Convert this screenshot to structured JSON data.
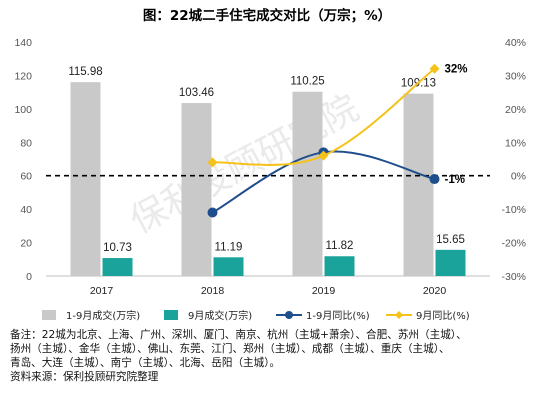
{
  "chart_data": {
    "type": "bar+line",
    "title": "图：22城二手住宅成交对比（万宗；%）",
    "categories": [
      "2017",
      "2018",
      "2019",
      "2020"
    ],
    "left_axis": {
      "ylim": [
        0,
        140
      ],
      "ticks": [
        0,
        20,
        40,
        60,
        80,
        100,
        120,
        140
      ]
    },
    "right_axis": {
      "ylim": [
        -30,
        40
      ],
      "ticks": [
        "-30%",
        "-20%",
        "-10%",
        "0%",
        "10%",
        "20%",
        "30%",
        "40%"
      ]
    },
    "series": [
      {
        "name": "1-9月成交(万宗)",
        "type": "bar",
        "axis": "left",
        "color": "#c9c9c9",
        "values": [
          115.98,
          103.46,
          110.25,
          109.13
        ],
        "labels": [
          "115.98",
          "103.46",
          "110.25",
          "109.13"
        ]
      },
      {
        "name": "9月成交(万宗)",
        "type": "bar",
        "axis": "left",
        "color": "#1aa39a",
        "values": [
          10.73,
          11.19,
          11.82,
          15.65
        ],
        "labels": [
          "10.73",
          "11.19",
          "11.82",
          "15.65"
        ]
      },
      {
        "name": "1-9月同比(%)",
        "type": "line",
        "axis": "right",
        "color": "#1f4e8c",
        "values": [
          null,
          -11,
          7,
          -1
        ],
        "point_label": {
          "index": 3,
          "text": "-1%"
        }
      },
      {
        "name": "9月同比(%)",
        "type": "line",
        "axis": "right",
        "color": "#f5c21b",
        "values": [
          null,
          4,
          6,
          32
        ],
        "point_label": {
          "index": 3,
          "text": "32%"
        }
      }
    ],
    "reference_line": {
      "value": 60,
      "axis": "left",
      "style": "dashed",
      "color": "#000000"
    },
    "legend_position": "bottom",
    "grid": false
  },
  "watermark": "保利投顾研究院",
  "notes": {
    "line1": "备注：22城为北京、上海、广州、深圳、厦门、南京、杭州（主城+萧余）、合肥、苏州（主城）、",
    "line2": "扬州（主城）、金华（主城）、佛山、东莞、江门、郑州（主城）、成都（主城）、重庆（主城）、",
    "line3": "青岛、大连（主城）、南宁（主城）、北海、岳阳（主城）。",
    "line4": "资料来源：保利投顾研究院整理"
  }
}
